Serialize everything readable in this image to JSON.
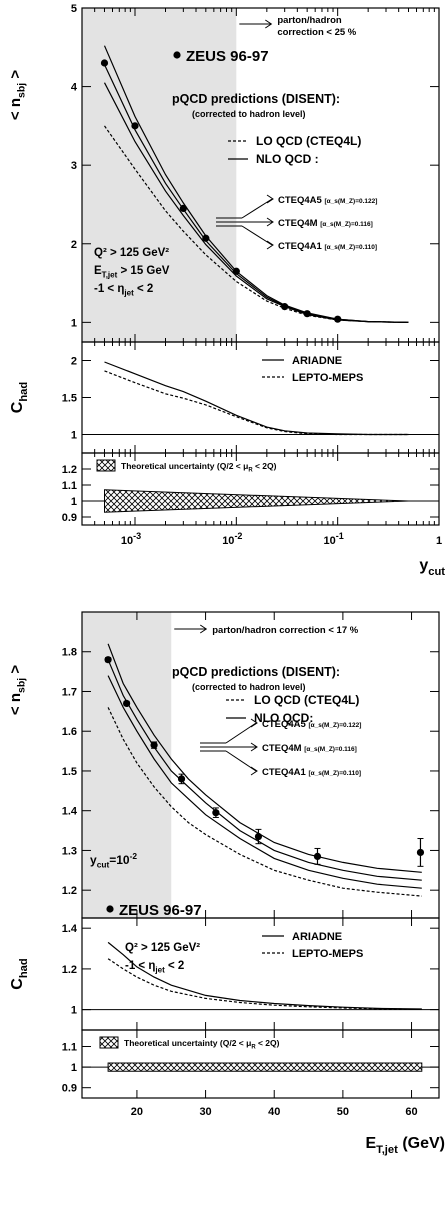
{
  "chart_data": [
    {
      "id": "top",
      "type": "line",
      "x_scale": "log",
      "xlim": [
        0.0003,
        1
      ],
      "xlabel": "y_cut",
      "x_tick_labels": [
        "10^-3",
        "10^-2",
        "10^-1",
        "1"
      ],
      "band_xmax": 0.01,
      "main": {
        "ylabel": "< n_sbj >",
        "ylim": [
          0.75,
          5
        ],
        "y_ticks": [
          1,
          2,
          3,
          4,
          5
        ],
        "data": {
          "name": "ZEUS 96-97",
          "x": [
            0.0005,
            0.001,
            0.003,
            0.005,
            0.01,
            0.03,
            0.05,
            0.1
          ],
          "y": [
            4.3,
            3.5,
            2.45,
            2.07,
            1.65,
            1.2,
            1.11,
            1.04
          ]
        },
        "curves": [
          {
            "name": "CTEQ4A5 NLO",
            "style": "solid",
            "x": [
              0.0005,
              0.001,
              0.002,
              0.003,
              0.005,
              0.01,
              0.02,
              0.03,
              0.05,
              0.1,
              0.2,
              0.5
            ],
            "y": [
              4.52,
              3.62,
              2.88,
              2.52,
              2.1,
              1.65,
              1.34,
              1.22,
              1.12,
              1.04,
              1.01,
              1.0
            ]
          },
          {
            "name": "CTEQ4M NLO",
            "style": "solid",
            "x": [
              0.0005,
              0.001,
              0.002,
              0.003,
              0.005,
              0.01,
              0.02,
              0.03,
              0.05,
              0.1,
              0.2,
              0.5
            ],
            "y": [
              4.28,
              3.45,
              2.77,
              2.44,
              2.04,
              1.62,
              1.32,
              1.21,
              1.11,
              1.04,
              1.01,
              1.0
            ]
          },
          {
            "name": "CTEQ4A1 NLO",
            "style": "solid",
            "x": [
              0.0005,
              0.001,
              0.002,
              0.003,
              0.005,
              0.01,
              0.02,
              0.03,
              0.05,
              0.1,
              0.2,
              0.5
            ],
            "y": [
              4.05,
              3.3,
              2.67,
              2.36,
              1.99,
              1.59,
              1.3,
              1.2,
              1.1,
              1.03,
              1.01,
              1.0
            ]
          },
          {
            "name": "LO QCD (CTEQ4L)",
            "style": "dashed",
            "x": [
              0.0005,
              0.001,
              0.002,
              0.003,
              0.005,
              0.01,
              0.02,
              0.03,
              0.05,
              0.1,
              0.2,
              0.5
            ],
            "y": [
              3.5,
              2.95,
              2.42,
              2.16,
              1.86,
              1.52,
              1.27,
              1.18,
              1.09,
              1.03,
              1.01,
              1.0
            ]
          }
        ],
        "annotations": {
          "correction": [
            "parton/hadron",
            "correction < 25 %"
          ],
          "zeus": "ZEUS 96-97",
          "pqcd": "pQCD predictions (DISENT):",
          "pqcd_sub": "(corrected to hadron level)",
          "lo": "LO QCD (CTEQ4L)",
          "nlo": "NLO QCD :",
          "cteq": [
            {
              "name": "CTEQ4A5",
              "alpha": "[α_s(M_Z)=0.122]"
            },
            {
              "name": "CTEQ4M",
              "alpha": "[α_s(M_Z)=0.116]"
            },
            {
              "name": "CTEQ4A1",
              "alpha": "[α_s(M_Z)=0.110]"
            }
          ],
          "cuts": [
            "Q² > 125 GeV²",
            "E_T,jet > 15 GeV",
            "-1 < η_jet < 2"
          ]
        }
      },
      "chad": {
        "ylabel": "C_had",
        "ylim": [
          0.75,
          2.25
        ],
        "y_ticks": [
          1,
          1.5,
          2
        ],
        "legend": [
          "ARIADNE",
          "LEPTO-MEPS"
        ],
        "curves": [
          {
            "name": "ARIADNE",
            "style": "solid",
            "x": [
              0.0005,
              0.001,
              0.002,
              0.003,
              0.005,
              0.01,
              0.02,
              0.03,
              0.05,
              0.1,
              0.2,
              0.5
            ],
            "y": [
              1.98,
              1.82,
              1.66,
              1.58,
              1.45,
              1.26,
              1.1,
              1.05,
              1.02,
              1.01,
              1.0,
              1.0
            ]
          },
          {
            "name": "LEPTO-MEPS",
            "style": "dashed",
            "x": [
              0.0005,
              0.001,
              0.002,
              0.003,
              0.005,
              0.01,
              0.02,
              0.03,
              0.05,
              0.1,
              0.2,
              0.5
            ],
            "y": [
              1.86,
              1.7,
              1.55,
              1.49,
              1.4,
              1.24,
              1.09,
              1.04,
              1.01,
              1.0,
              1.0,
              1.0
            ]
          }
        ]
      },
      "unc": {
        "ylim": [
          0.85,
          1.3
        ],
        "y_ticks": [
          0.9,
          1,
          1.1,
          1.2
        ],
        "legend": "Theoretical uncertainty (Q/2 < μ_R < 2Q)",
        "x": [
          0.0005,
          0.5
        ],
        "half_width": [
          0.07,
          0.0
        ]
      }
    },
    {
      "id": "bottom",
      "type": "line",
      "x_scale": "linear",
      "xlim": [
        12,
        64
      ],
      "xlabel": "E_T,jet (GeV)",
      "x_ticks": [
        20,
        30,
        40,
        50,
        60
      ],
      "band_xmax": 25,
      "main": {
        "ylabel": "< n_sbj >",
        "ylim": [
          1.13,
          1.9
        ],
        "y_ticks": [
          1.2,
          1.3,
          1.4,
          1.5,
          1.6,
          1.7,
          1.8
        ],
        "data": {
          "name": "ZEUS 96-97",
          "x": [
            15.8,
            18.5,
            22.5,
            26.5,
            31.5,
            37.7,
            46.3,
            61.3
          ],
          "y": [
            1.78,
            1.67,
            1.565,
            1.48,
            1.395,
            1.335,
            1.285,
            1.295
          ],
          "err": [
            0.005,
            0.005,
            0.008,
            0.012,
            0.012,
            0.018,
            0.02,
            0.035
          ]
        },
        "curves": [
          {
            "name": "CTEQ4A5 NLO",
            "style": "solid",
            "x": [
              15.8,
              18,
              20,
              22.5,
              25,
              27.5,
              30,
              35,
              40,
              45,
              50,
              55,
              61.5
            ],
            "y": [
              1.82,
              1.72,
              1.66,
              1.59,
              1.53,
              1.48,
              1.44,
              1.37,
              1.32,
              1.29,
              1.27,
              1.255,
              1.245
            ]
          },
          {
            "name": "CTEQ4M NLO",
            "style": "solid",
            "x": [
              15.8,
              18,
              20,
              22.5,
              25,
              27.5,
              30,
              35,
              40,
              45,
              50,
              55,
              61.5
            ],
            "y": [
              1.78,
              1.69,
              1.63,
              1.56,
              1.5,
              1.46,
              1.42,
              1.35,
              1.3,
              1.27,
              1.25,
              1.235,
              1.225
            ]
          },
          {
            "name": "CTEQ4A1 NLO",
            "style": "solid",
            "x": [
              15.8,
              18,
              20,
              22.5,
              25,
              27.5,
              30,
              35,
              40,
              45,
              50,
              55,
              61.5
            ],
            "y": [
              1.74,
              1.66,
              1.6,
              1.53,
              1.47,
              1.43,
              1.39,
              1.33,
              1.28,
              1.25,
              1.23,
              1.215,
              1.205
            ]
          },
          {
            "name": "LO QCD (CTEQ4L)",
            "style": "dashed",
            "x": [
              15.8,
              18,
              20,
              22.5,
              25,
              27.5,
              30,
              35,
              40,
              45,
              50,
              55,
              61.5
            ],
            "y": [
              1.66,
              1.58,
              1.52,
              1.46,
              1.41,
              1.37,
              1.34,
              1.29,
              1.25,
              1.225,
              1.205,
              1.195,
              1.185
            ]
          }
        ],
        "annotations": {
          "correction": [
            "parton/hadron correction < 17 %"
          ],
          "zeus": "ZEUS 96-97",
          "pqcd": "pQCD predictions (DISENT):",
          "pqcd_sub": "(corrected to hadron level)",
          "lo": "LO QCD (CTEQ4L)",
          "nlo": "NLO QCD:",
          "cteq": [
            {
              "name": "CTEQ4A5",
              "alpha": "[α_s(M_Z)=0.122]"
            },
            {
              "name": "CTEQ4M",
              "alpha": "[α_s(M_Z)=0.116]"
            },
            {
              "name": "CTEQ4A1",
              "alpha": "[α_s(M_Z)=0.110]"
            }
          ],
          "ycut": "y_cut=10^-2",
          "cuts": [
            "Q² > 125 GeV²",
            "-1 < η_jet < 2"
          ]
        }
      },
      "chad": {
        "ylabel": "C_had",
        "ylim": [
          0.9,
          1.45
        ],
        "y_ticks": [
          1,
          1.2,
          1.4
        ],
        "legend": [
          "ARIADNE",
          "LEPTO-MEPS"
        ],
        "curves": [
          {
            "name": "ARIADNE",
            "style": "solid",
            "x": [
              15.8,
              18,
              20,
              22.5,
              25,
              30,
              35,
              40,
              45,
              50,
              55,
              61.5
            ],
            "y": [
              1.33,
              1.27,
              1.21,
              1.16,
              1.12,
              1.07,
              1.045,
              1.03,
              1.02,
              1.012,
              1.006,
              1.003
            ]
          },
          {
            "name": "LEPTO-MEPS",
            "style": "dashed",
            "x": [
              15.8,
              18,
              20,
              22.5,
              25,
              30,
              35,
              40,
              45,
              50,
              55,
              61.5
            ],
            "y": [
              1.25,
              1.2,
              1.16,
              1.12,
              1.09,
              1.055,
              1.035,
              1.022,
              1.014,
              1.008,
              1.004,
              1.002
            ]
          }
        ]
      },
      "unc": {
        "ylim": [
          0.85,
          1.18
        ],
        "y_ticks": [
          0.9,
          1,
          1.1
        ],
        "legend": "Theoretical uncertainty (Q/2 < μ_R < 2Q)",
        "x": [
          15.8,
          61.5
        ],
        "half_width": [
          0.02,
          0.02
        ]
      }
    }
  ]
}
